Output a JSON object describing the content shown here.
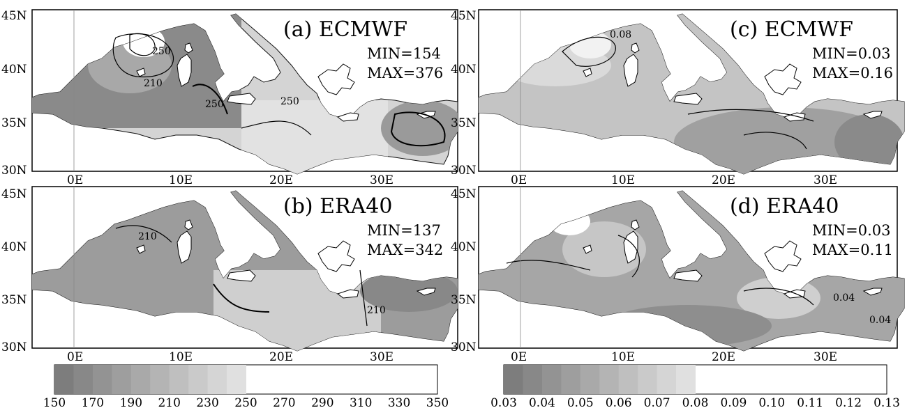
{
  "panels": [
    {
      "id": "a",
      "title": "(a) ECMWF",
      "min_text": "MIN=154",
      "max_text": "MAX=376",
      "contour_labels": [
        "250",
        "210",
        "250",
        "250"
      ]
    },
    {
      "id": "b",
      "title": "(b) ERA40",
      "min_text": "MIN=137",
      "max_text": "MAX=342",
      "contour_labels": [
        "210",
        "210"
      ]
    },
    {
      "id": "c",
      "title": "(c) ECMWF",
      "min_text": "MIN=0.03",
      "max_text": "MAX=0.16",
      "contour_labels": [
        "0.08"
      ]
    },
    {
      "id": "d",
      "title": "(d) ERA40",
      "min_text": "MIN=0.03",
      "max_text": "MAX=0.11",
      "contour_labels": [
        "0.04",
        "0.04"
      ]
    }
  ],
  "axes": {
    "lat_labels": [
      "45N",
      "40N",
      "35N",
      "30N"
    ],
    "lon_labels": [
      "0E",
      "10E",
      "20E",
      "30E"
    ]
  },
  "colorbars": [
    {
      "labels": [
        "150",
        "170",
        "190",
        "210",
        "230",
        "250",
        "270",
        "290",
        "310",
        "330",
        "350"
      ],
      "shades": [
        "#7d7d7d",
        "#888888",
        "#939393",
        "#9e9e9e",
        "#a9a9a9",
        "#b4b4b4",
        "#bfbfbf",
        "#cacaca",
        "#d5d5d5",
        "#e0e0e0"
      ],
      "shaded_segments": 10,
      "total_segments": 20
    },
    {
      "labels": [
        "0.03",
        "0.04",
        "0.05",
        "0.06",
        "0.07",
        "0.08",
        "0.09",
        "0.10",
        "0.11",
        "0.12",
        "0.13"
      ],
      "shades": [
        "#7d7d7d",
        "#888888",
        "#939393",
        "#9e9e9e",
        "#a9a9a9",
        "#b4b4b4",
        "#bfbfbf",
        "#cacaca",
        "#d5d5d5",
        "#e0e0e0"
      ],
      "shaded_segments": 10,
      "total_segments": 20
    }
  ],
  "colors": {
    "sea_dark": "#8a8a8a",
    "sea_mid": "#a8a8a8",
    "sea_light": "#d4d4d4",
    "sea_pale": "#e6e6e6",
    "land": "#ffffff"
  }
}
